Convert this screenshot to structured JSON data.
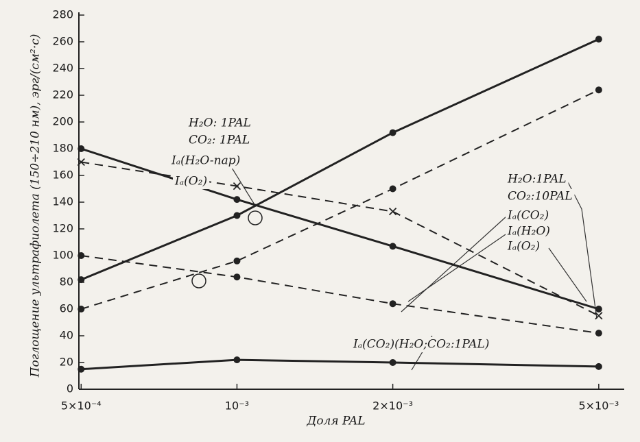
{
  "chart_data": {
    "type": "line",
    "xscale": "log",
    "x_label": "Доля PAL",
    "y_label": "Поглощение ультрафиолета (150÷210 нм), эрг/(см²·с)",
    "x": [
      0.0005,
      0.001,
      0.002,
      0.005
    ],
    "xlim": [
      0.000495,
      0.0056
    ],
    "xticks": [
      {
        "value": 0.0005,
        "label": "5×10⁻⁴"
      },
      {
        "value": 0.001,
        "label": "10⁻³"
      },
      {
        "value": 0.002,
        "label": "2×10⁻³"
      },
      {
        "value": 0.005,
        "label": "5×10⁻³"
      }
    ],
    "ylim": [
      0,
      280
    ],
    "yticks": [
      0,
      20,
      40,
      60,
      80,
      100,
      120,
      140,
      160,
      180,
      200,
      220,
      240,
      260,
      280
    ],
    "series": [
      {
        "color": "#222222",
        "style": "solid",
        "marker": "dot",
        "values": [
          82,
          130,
          192,
          262
        ]
      },
      {
        "color": "#222222",
        "style": "solid",
        "marker": "dot",
        "values": [
          180,
          142,
          107,
          60
        ]
      },
      {
        "color": "#222222",
        "style": "dashed",
        "marker": "dot",
        "values": [
          60,
          96,
          150,
          224
        ]
      },
      {
        "color": "#222222",
        "style": "dashed",
        "marker": "cross",
        "values": [
          170,
          152,
          133,
          55
        ]
      },
      {
        "color": "#222222",
        "style": "dashed",
        "marker": "dot",
        "values": [
          100,
          84,
          64,
          42
        ]
      },
      {
        "color": "#222222",
        "style": "solid",
        "marker": "dot",
        "values": [
          15,
          22,
          20,
          17
        ]
      }
    ],
    "annotations": [
      "H₂O: 1PAL",
      "CO₂: 1PAL",
      "Iₐ(H₂O-пар)",
      "Iₐ(O₂)",
      "H₂O:1PAL",
      "CO₂:10PAL",
      "Iₐ(CO₂)",
      "Iₐ(H₂O)",
      "Iₐ(O₂)",
      "Iₐ(CO₂)(H₂O;CO₂:1PAL)"
    ]
  }
}
